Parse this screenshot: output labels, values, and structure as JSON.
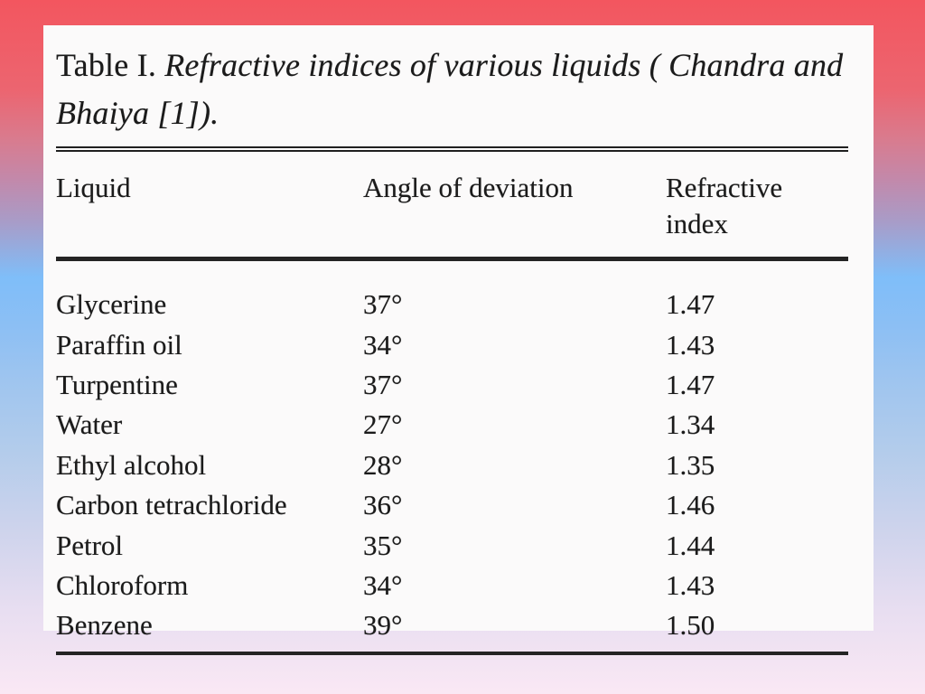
{
  "background": {
    "gradient_stops": [
      "#f3565f",
      "#ec6570",
      "#d97b8e",
      "#c289ab",
      "#a89cc8",
      "#7fbef9",
      "#9fc5ef",
      "#cdd3ec",
      "#e8def1",
      "#fae8f4"
    ]
  },
  "table": {
    "title": {
      "label": "Table I.",
      "line1": "Refractive indices of various liquids ( Chandra and",
      "line2": "Bhaiya [1])."
    },
    "columns": [
      "Liquid",
      "Angle of deviation",
      "Refractive index"
    ],
    "rows": [
      {
        "liquid": "Glycerine",
        "angle": "37°",
        "index": "1.47"
      },
      {
        "liquid": "Paraffin oil",
        "angle": "34°",
        "index": "1.43"
      },
      {
        "liquid": "Turpentine",
        "angle": "37°",
        "index": "1.47"
      },
      {
        "liquid": "Water",
        "angle": "27°",
        "index": "1.34"
      },
      {
        "liquid": "Ethyl alcohol",
        "angle": "28°",
        "index": "1.35"
      },
      {
        "liquid": "Carbon tetrachloride",
        "angle": "36°",
        "index": "1.46"
      },
      {
        "liquid": "Petrol",
        "angle": "35°",
        "index": "1.44"
      },
      {
        "liquid": "Chloroform",
        "angle": "34°",
        "index": "1.43"
      },
      {
        "liquid": "Benzene",
        "angle": "39°",
        "index": "1.50"
      }
    ],
    "text_color": "#1b1b1b",
    "card_bg": "#fbfafa"
  },
  "chart_data": {
    "type": "table",
    "title": "Table I. Refractive indices of various liquids (Chandra and Bhaiya [1]).",
    "columns": [
      "Liquid",
      "Angle of deviation",
      "Refractive index"
    ],
    "rows": [
      [
        "Glycerine",
        "37°",
        1.47
      ],
      [
        "Paraffin oil",
        "34°",
        1.43
      ],
      [
        "Turpentine",
        "37°",
        1.47
      ],
      [
        "Water",
        "27°",
        1.34
      ],
      [
        "Ethyl alcohol",
        "28°",
        1.35
      ],
      [
        "Carbon tetrachloride",
        "36°",
        1.46
      ],
      [
        "Petrol",
        "35°",
        1.44
      ],
      [
        "Chloroform",
        "34°",
        1.43
      ],
      [
        "Benzene",
        "39°",
        1.5
      ]
    ]
  }
}
